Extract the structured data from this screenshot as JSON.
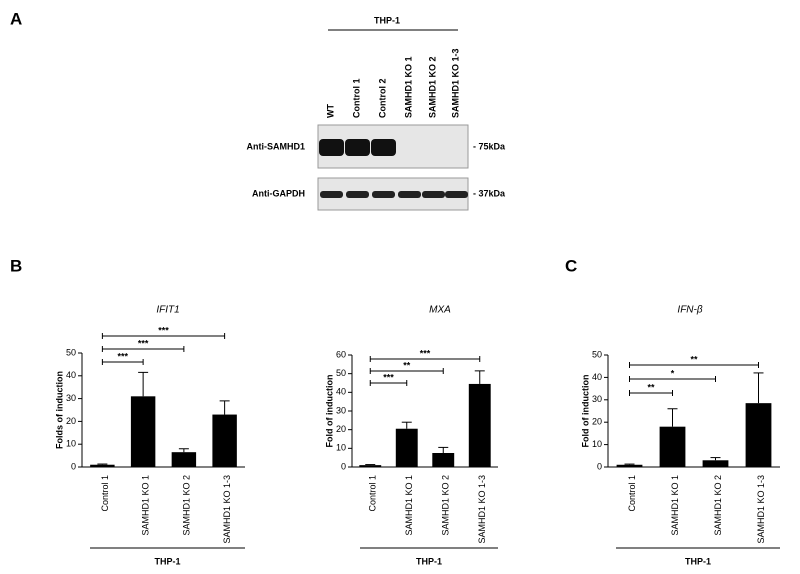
{
  "panels": [
    "A",
    "B",
    "C"
  ],
  "blot": {
    "group": "THP-1",
    "lanes": [
      "WT",
      "Control 1",
      "Control 2",
      "SAMHD1 KO 1",
      "SAMHD1 KO 2",
      "SAMHD1 KO 1-3"
    ],
    "rows": [
      {
        "label": "Anti-SAMHD1",
        "size": "- 75kDa"
      },
      {
        "label": "Anti-GAPDH",
        "size": "- 37kDa"
      }
    ]
  },
  "chart_data": [
    {
      "type": "bar",
      "title": "IFIT1",
      "ylabel": "Folds of induction",
      "categories": [
        "Control 1",
        "SAMHD1 KO 1",
        "SAMHD1 KO 2",
        "SAMHD1 KO 1-3"
      ],
      "values": [
        1,
        31,
        6.5,
        23
      ],
      "errors": [
        0.3,
        10.5,
        1.5,
        6
      ],
      "color": "#000000",
      "ylim": [
        0,
        50
      ],
      "yticks": [
        0,
        10,
        20,
        30,
        40,
        50
      ],
      "annotations": [
        "***",
        "***",
        "***"
      ],
      "group": "THP-1"
    },
    {
      "type": "bar",
      "title": "MXA",
      "ylabel": "Fold of induction",
      "categories": [
        "Control 1",
        "SAMHD1 KO 1",
        "SAMHD1 KO 2",
        "SAMHD1 KO 1-3"
      ],
      "values": [
        1,
        20.5,
        7.5,
        44.5
      ],
      "errors": [
        0.3,
        3.5,
        3,
        7
      ],
      "color": "#000000",
      "ylim": [
        0,
        60
      ],
      "yticks": [
        0,
        10,
        20,
        30,
        40,
        50,
        60
      ],
      "annotations": [
        "***",
        "**",
        "***"
      ],
      "group": "THP-1"
    },
    {
      "type": "bar",
      "title": "IFN-β",
      "ylabel": "Fold of induction",
      "categories": [
        "Control 1",
        "SAMHD1 KO 1",
        "SAMHD1 KO 2",
        "SAMHD1 KO 1-3"
      ],
      "values": [
        1,
        18,
        3,
        28.5
      ],
      "errors": [
        0.3,
        8,
        1.2,
        13.5
      ],
      "color": "#000000",
      "ylim": [
        0,
        50
      ],
      "yticks": [
        0,
        10,
        20,
        30,
        40,
        50
      ],
      "annotations": [
        "**",
        "*",
        "**"
      ],
      "group": "THP-1"
    }
  ]
}
